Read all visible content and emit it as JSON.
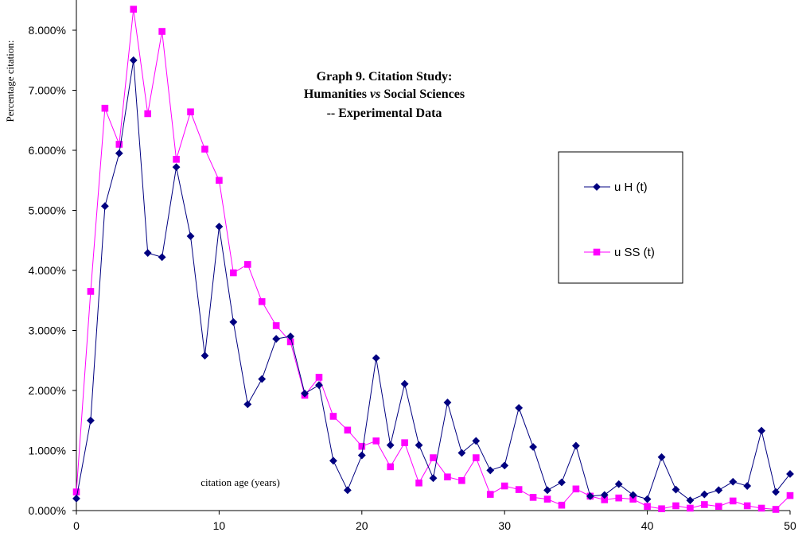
{
  "chart_data": {
    "type": "line",
    "title": [
      "Graph 9.  Citation Study:",
      "Humanities vs Social Sciences",
      "-- Experimental Data"
    ],
    "title_emphasis": "vs",
    "xlabel": "citation age (years)",
    "ylabel": "Percentage citation:",
    "xlim": [
      0,
      50
    ],
    "ylim": [
      0,
      8.0
    ],
    "x_ticks": [
      0,
      10,
      20,
      30,
      40,
      50
    ],
    "y_ticks": [
      0,
      1,
      2,
      3,
      4,
      5,
      6,
      7,
      8
    ],
    "y_tick_labels": [
      "0.000%",
      "1.000%",
      "2.000%",
      "3.000%",
      "4.000%",
      "5.000%",
      "6.000%",
      "7.000%",
      "8.000%"
    ],
    "grid": false,
    "legend_position": "right",
    "x": [
      0,
      1,
      2,
      3,
      4,
      5,
      6,
      7,
      8,
      9,
      10,
      11,
      12,
      13,
      14,
      15,
      16,
      17,
      18,
      19,
      20,
      21,
      22,
      23,
      24,
      25,
      26,
      27,
      28,
      29,
      30,
      31,
      32,
      33,
      34,
      35,
      36,
      37,
      38,
      39,
      40,
      41,
      42,
      43,
      44,
      45,
      46,
      47,
      48,
      49,
      50
    ],
    "series": [
      {
        "name": "u H (t)",
        "color": "#000080",
        "marker": "diamond",
        "values": [
          0.2,
          1.5,
          5.07,
          5.95,
          7.5,
          4.29,
          4.22,
          5.72,
          4.57,
          2.58,
          4.73,
          3.14,
          1.77,
          2.19,
          2.86,
          2.9,
          1.95,
          2.09,
          0.83,
          0.34,
          0.92,
          2.54,
          1.09,
          2.11,
          1.09,
          0.54,
          1.8,
          0.96,
          1.16,
          0.67,
          0.75,
          1.71,
          1.06,
          0.34,
          0.47,
          1.08,
          0.24,
          0.26,
          0.44,
          0.26,
          0.19,
          0.89,
          0.35,
          0.17,
          0.27,
          0.34,
          0.48,
          0.41,
          1.33,
          0.31,
          0.61
        ]
      },
      {
        "name": "u SS (t)",
        "color": "#FF00FF",
        "marker": "square",
        "values": [
          0.31,
          3.65,
          6.7,
          6.1,
          8.35,
          6.61,
          7.98,
          5.85,
          6.64,
          6.02,
          5.5,
          3.96,
          4.1,
          3.48,
          3.08,
          2.81,
          1.92,
          2.22,
          1.57,
          1.34,
          1.07,
          1.16,
          0.73,
          1.13,
          0.46,
          0.88,
          0.56,
          0.5,
          0.88,
          0.27,
          0.41,
          0.35,
          0.22,
          0.19,
          0.09,
          0.36,
          0.24,
          0.18,
          0.21,
          0.19,
          0.07,
          0.03,
          0.08,
          0.04,
          0.1,
          0.07,
          0.16,
          0.08,
          0.04,
          0.02,
          0.25
        ]
      }
    ]
  }
}
